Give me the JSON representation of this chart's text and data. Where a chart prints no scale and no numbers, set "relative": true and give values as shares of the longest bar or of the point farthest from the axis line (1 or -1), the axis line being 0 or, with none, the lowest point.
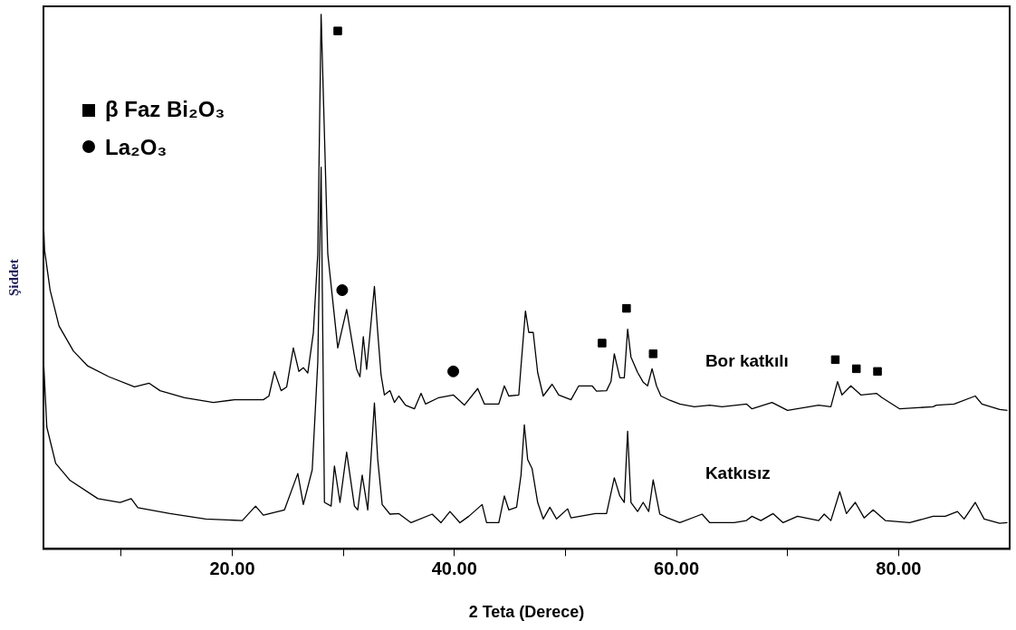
{
  "chart_data": {
    "type": "line",
    "xlabel": "2 Teta (Derece)",
    "ylabel": "Şiddet",
    "relative": true,
    "legend": "top left",
    "xlim": [
      3,
      90
    ],
    "xticks": [
      {
        "value": 10,
        "label": null
      },
      {
        "value": 20,
        "label": "20.00"
      },
      {
        "value": 30,
        "label": null
      },
      {
        "value": 40,
        "label": "40.00"
      },
      {
        "value": 50,
        "label": null
      },
      {
        "value": 60,
        "label": "60.00"
      },
      {
        "value": 70,
        "label": null
      },
      {
        "value": 80,
        "label": "80.00"
      }
    ],
    "series": [
      {
        "name": "Bor katkılı",
        "color": "#000000",
        "marker": "none",
        "x": [
          3.0,
          3.1,
          3.6,
          4.4,
          5.7,
          7.0,
          8.9,
          11.2,
          12.5,
          13.5,
          15.7,
          18.3,
          20.2,
          22.8,
          23.3,
          23.8,
          24.4,
          24.9,
          25.5,
          26.0,
          26.4,
          26.8,
          27.3,
          27.7,
          28.0,
          28.6,
          29.5,
          30.3,
          31.2,
          31.5,
          31.8,
          32.1,
          32.8,
          33.1,
          33.4,
          33.7,
          34.2,
          34.6,
          35.0,
          35.6,
          36.4,
          37.0,
          37.4,
          38.6,
          39.9,
          40.9,
          42.1,
          42.7,
          44.0,
          44.5,
          44.9,
          45.8,
          46.0,
          46.4,
          46.7,
          47.1,
          47.5,
          48.0,
          48.8,
          49.4,
          50.5,
          51.2,
          52.4,
          52.8,
          53.7,
          54.1,
          54.4,
          54.9,
          55.3,
          55.6,
          55.9,
          56.5,
          57.0,
          57.4,
          57.8,
          58.2,
          58.6,
          59.4,
          60.3,
          61.6,
          63.0,
          64.1,
          66.3,
          66.8,
          68.6,
          70.0,
          72.8,
          73.9,
          74.5,
          74.9,
          75.7,
          76.6,
          78.0,
          78.5,
          80.1,
          83.1,
          83.4,
          85.0,
          86.9,
          87.5,
          89.1,
          89.8
        ],
        "values": [
          0.613,
          0.559,
          0.484,
          0.417,
          0.37,
          0.342,
          0.322,
          0.303,
          0.31,
          0.296,
          0.283,
          0.274,
          0.279,
          0.279,
          0.286,
          0.332,
          0.296,
          0.303,
          0.376,
          0.332,
          0.339,
          0.329,
          0.404,
          0.552,
          1.0,
          0.552,
          0.376,
          0.448,
          0.336,
          0.322,
          0.397,
          0.336,
          0.491,
          0.405,
          0.325,
          0.288,
          0.296,
          0.274,
          0.286,
          0.269,
          0.262,
          0.291,
          0.271,
          0.283,
          0.288,
          0.269,
          0.3,
          0.271,
          0.271,
          0.305,
          0.286,
          0.288,
          0.342,
          0.445,
          0.405,
          0.405,
          0.33,
          0.286,
          0.308,
          0.288,
          0.279,
          0.305,
          0.305,
          0.295,
          0.296,
          0.313,
          0.365,
          0.32,
          0.32,
          0.411,
          0.359,
          0.33,
          0.312,
          0.305,
          0.337,
          0.305,
          0.286,
          0.278,
          0.271,
          0.266,
          0.269,
          0.266,
          0.271,
          0.262,
          0.274,
          0.259,
          0.269,
          0.266,
          0.313,
          0.288,
          0.305,
          0.288,
          0.291,
          0.283,
          0.262,
          0.266,
          0.269,
          0.271,
          0.286,
          0.271,
          0.261,
          0.259
        ]
      },
      {
        "name": "Katkısız",
        "color": "#000000",
        "marker": "none",
        "x": [
          3.0,
          3.3,
          4.1,
          5.4,
          7.9,
          9.9,
          10.9,
          11.5,
          14.4,
          17.6,
          20.9,
          22.1,
          22.8,
          24.7,
          25.9,
          26.4,
          27.2,
          27.7,
          28.0,
          28.3,
          28.9,
          29.2,
          29.7,
          30.3,
          31.0,
          31.3,
          31.7,
          32.2,
          32.8,
          33.1,
          33.5,
          34.2,
          35.0,
          36.1,
          38.0,
          38.8,
          39.6,
          40.5,
          41.3,
          42.5,
          42.9,
          44.0,
          44.5,
          44.9,
          45.6,
          46.0,
          46.3,
          46.6,
          47.0,
          47.5,
          48.0,
          48.6,
          49.2,
          50.2,
          50.5,
          52.7,
          53.7,
          54.4,
          54.9,
          55.3,
          55.6,
          55.9,
          56.5,
          57.0,
          57.5,
          57.9,
          58.5,
          59.2,
          60.3,
          62.3,
          63.0,
          65.2,
          66.3,
          66.8,
          67.6,
          68.7,
          69.6,
          70.9,
          72.8,
          73.3,
          73.9,
          74.7,
          75.3,
          76.1,
          76.9,
          77.7,
          78.8,
          81.0,
          83.1,
          84.2,
          85.3,
          85.9,
          86.9,
          87.7,
          89.1,
          89.8
        ],
        "values": [
          0.356,
          0.228,
          0.16,
          0.128,
          0.094,
          0.087,
          0.094,
          0.077,
          0.066,
          0.056,
          0.053,
          0.08,
          0.063,
          0.073,
          0.141,
          0.083,
          0.148,
          0.349,
          0.714,
          0.087,
          0.08,
          0.155,
          0.087,
          0.181,
          0.08,
          0.073,
          0.138,
          0.073,
          0.273,
          0.167,
          0.083,
          0.065,
          0.066,
          0.049,
          0.065,
          0.049,
          0.07,
          0.049,
          0.061,
          0.083,
          0.049,
          0.049,
          0.099,
          0.073,
          0.078,
          0.138,
          0.232,
          0.167,
          0.15,
          0.087,
          0.056,
          0.078,
          0.056,
          0.075,
          0.058,
          0.066,
          0.066,
          0.133,
          0.099,
          0.087,
          0.22,
          0.087,
          0.07,
          0.087,
          0.07,
          0.129,
          0.065,
          0.058,
          0.049,
          0.065,
          0.049,
          0.049,
          0.053,
          0.061,
          0.053,
          0.066,
          0.049,
          0.061,
          0.053,
          0.065,
          0.053,
          0.107,
          0.066,
          0.087,
          0.058,
          0.073,
          0.053,
          0.049,
          0.061,
          0.061,
          0.07,
          0.056,
          0.087,
          0.056,
          0.048,
          0.049
        ]
      },
      {
        "type": "scatter",
        "name": "β Faz Bi₂O₃",
        "color": "#000000",
        "marker": "square",
        "x": [
          29.5,
          53.3,
          55.5,
          57.9,
          74.3,
          76.2,
          78.1
        ],
        "values": [
          0.969,
          0.385,
          0.45,
          0.365,
          0.354,
          0.337,
          0.332
        ]
      },
      {
        "type": "scatter",
        "name": "La₂O₃",
        "color": "#000000",
        "marker": "circle",
        "x": [
          29.9,
          39.9
        ],
        "values": [
          0.484,
          0.332
        ]
      }
    ]
  }
}
